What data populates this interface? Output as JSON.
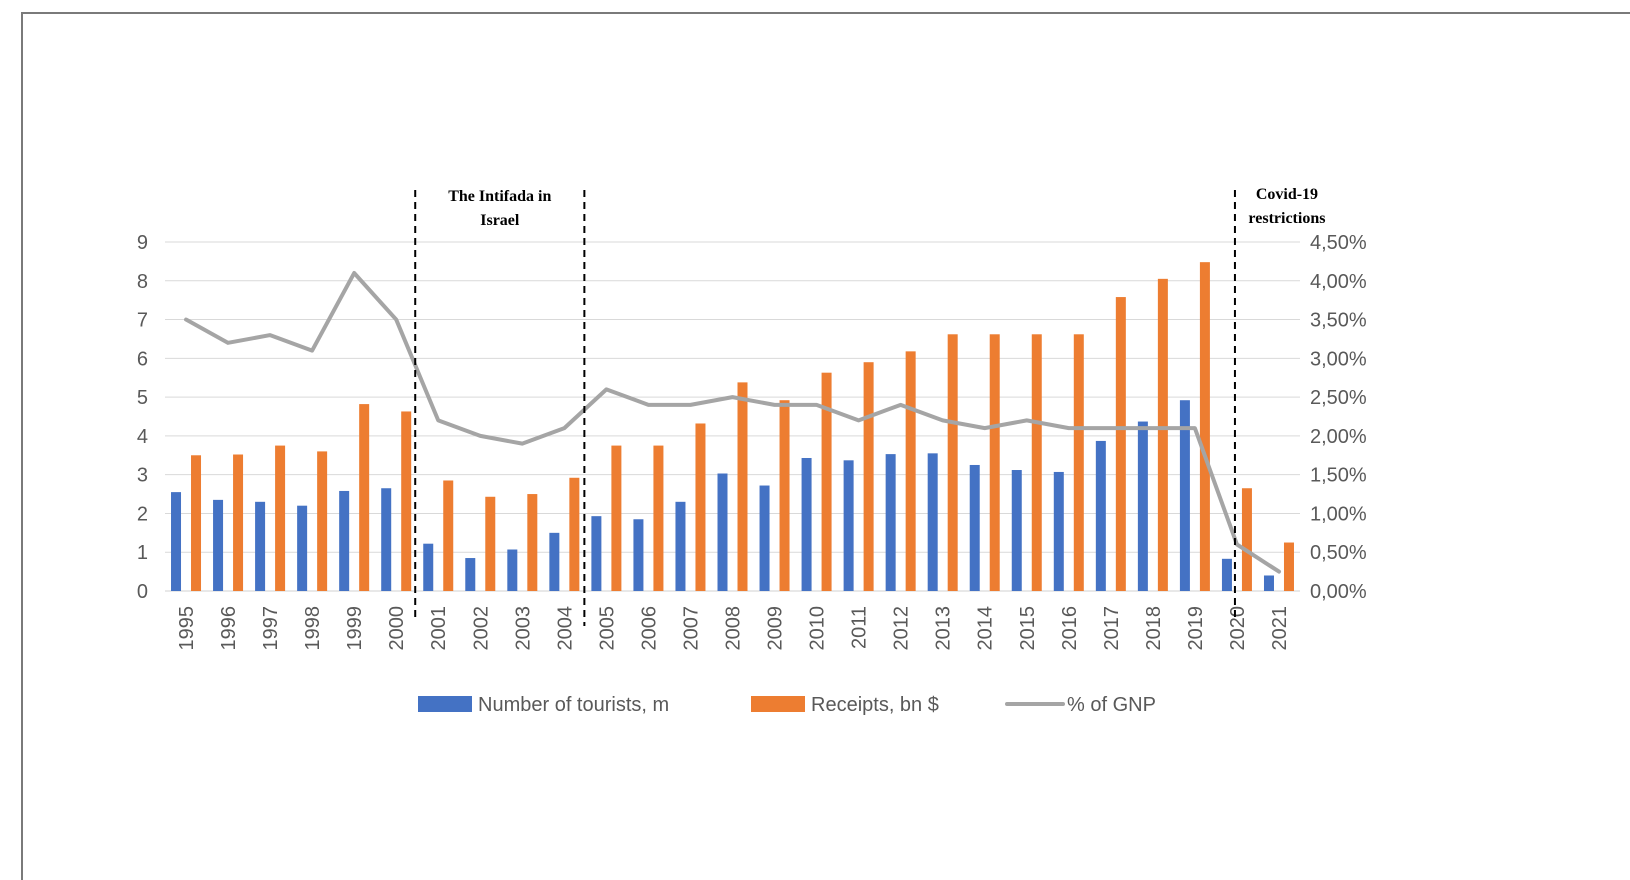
{
  "chart_data": {
    "type": "bar",
    "categories": [
      "1995",
      "1996",
      "1997",
      "1998",
      "1999",
      "2000",
      "2001",
      "2002",
      "2003",
      "2004",
      "2005",
      "2006",
      "2007",
      "2008",
      "2009",
      "2010",
      "2011",
      "2012",
      "2013",
      "2014",
      "2015",
      "2016",
      "2017",
      "2018",
      "2019",
      "2020",
      "2021"
    ],
    "series": [
      {
        "name": "Number of tourists, m",
        "type": "bar",
        "axis": "left",
        "color": "#4472C4",
        "values": [
          2.55,
          2.35,
          2.3,
          2.2,
          2.58,
          2.65,
          1.22,
          0.85,
          1.07,
          1.5,
          1.93,
          1.85,
          2.3,
          3.03,
          2.72,
          3.43,
          3.37,
          3.53,
          3.55,
          3.25,
          3.12,
          3.07,
          3.87,
          4.37,
          4.92,
          0.83,
          0.4
        ]
      },
      {
        "name": "Receipts,  bn $",
        "type": "bar",
        "axis": "left",
        "color": "#ED7D31",
        "values": [
          3.5,
          3.52,
          3.75,
          3.6,
          4.82,
          4.63,
          2.85,
          2.43,
          2.5,
          2.92,
          3.75,
          3.75,
          4.32,
          5.38,
          4.92,
          5.63,
          5.9,
          6.18,
          6.62,
          6.62,
          6.62,
          6.62,
          7.58,
          8.05,
          8.48,
          2.65,
          1.25
        ]
      },
      {
        "name": "% of GNP",
        "type": "line",
        "axis": "right",
        "color": "#A5A5A5",
        "values": [
          3.5,
          3.2,
          3.3,
          3.1,
          4.1,
          3.5,
          2.2,
          2.0,
          1.9,
          2.1,
          2.6,
          2.4,
          2.4,
          2.5,
          2.4,
          2.4,
          2.2,
          2.4,
          2.2,
          2.1,
          2.2,
          2.1,
          2.1,
          2.1,
          2.1,
          0.6,
          0.25
        ]
      }
    ],
    "ylim": [
      0,
      9
    ],
    "y2lim": [
      0,
      4.5
    ],
    "yticks": [
      "0",
      "1",
      "2",
      "3",
      "4",
      "5",
      "6",
      "7",
      "8",
      "9"
    ],
    "y2ticks": [
      "0,00%",
      "0,50%",
      "1,00%",
      "1,50%",
      "2,00%",
      "2,50%",
      "3,00%",
      "3,50%",
      "4,00%",
      "4,50%"
    ],
    "grid": true,
    "legend_position": "bottom",
    "annotations": [
      {
        "text_lines": [
          "The Intifada in",
          "Israel"
        ],
        "from": "2001",
        "to": "2004"
      },
      {
        "text_lines": [
          "Covid-19",
          "restrictions"
        ],
        "at": "2020"
      }
    ]
  }
}
